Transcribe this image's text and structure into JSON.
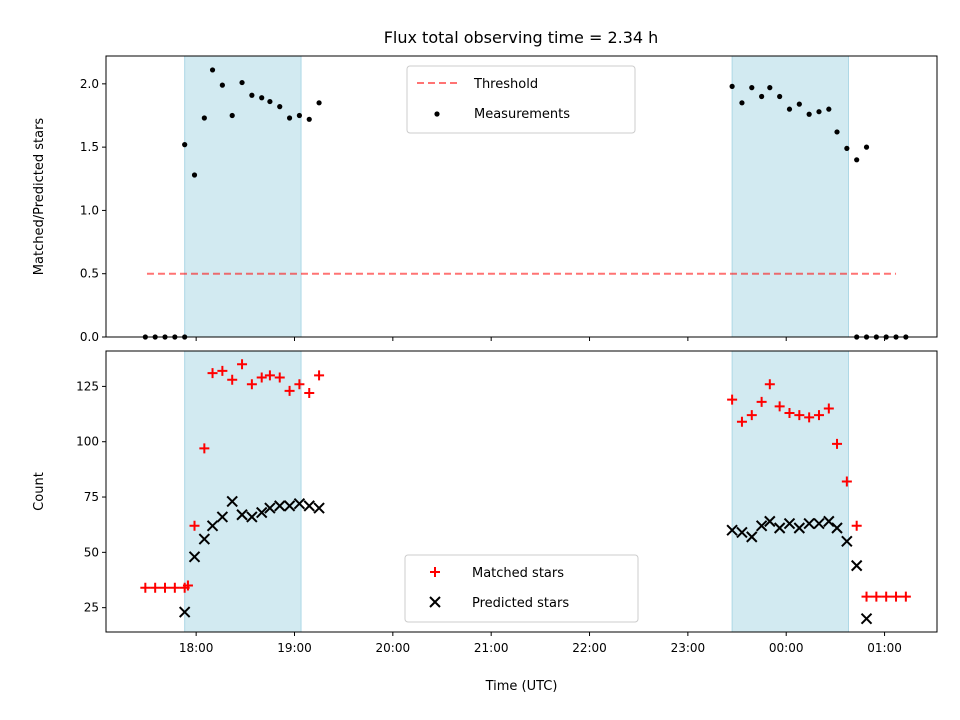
{
  "title": "Flux total observing time = 2.34 h",
  "colors": {
    "shade": "#add8e6",
    "threshold": "#ff0000",
    "measurements": "#000000",
    "matched": "#ff0000",
    "predicted": "#000000"
  },
  "chart_data": [
    {
      "type": "scatter",
      "ylabel": "Matched/Predicted stars",
      "xlim": [
        "17:05",
        "01:32"
      ],
      "ylim": [
        0,
        2.22
      ],
      "yticks": [
        0.0,
        0.5,
        1.0,
        1.5,
        2.0
      ],
      "ytick_labels": [
        "0.0",
        "0.5",
        "1.0",
        "1.5",
        "2.0"
      ],
      "shaded_intervals": [
        [
          "17:53",
          "19:04"
        ],
        [
          "23:27",
          "00:38"
        ]
      ],
      "threshold": {
        "name": "Threshold",
        "value": 0.5,
        "x": [
          "17:30",
          "01:07"
        ]
      },
      "legend": {
        "placement": "upper-center",
        "entries": [
          "Threshold",
          "Measurements"
        ]
      },
      "series": [
        {
          "name": "Measurements",
          "marker": "dot",
          "points": [
            [
              "17:29",
              0.0
            ],
            [
              "17:35",
              0.0
            ],
            [
              "17:41",
              0.0
            ],
            [
              "17:47",
              0.0
            ],
            [
              "17:53",
              0.0
            ],
            [
              "17:53",
              1.52
            ],
            [
              "17:59",
              1.28
            ],
            [
              "18:05",
              1.73
            ],
            [
              "18:10",
              2.11
            ],
            [
              "18:16",
              1.99
            ],
            [
              "18:22",
              1.75
            ],
            [
              "18:28",
              2.01
            ],
            [
              "18:34",
              1.91
            ],
            [
              "18:40",
              1.89
            ],
            [
              "18:45",
              1.86
            ],
            [
              "18:51",
              1.82
            ],
            [
              "18:57",
              1.73
            ],
            [
              "19:03",
              1.75
            ],
            [
              "19:09",
              1.72
            ],
            [
              "19:15",
              1.85
            ],
            [
              "23:27",
              1.98
            ],
            [
              "23:33",
              1.85
            ],
            [
              "23:39",
              1.97
            ],
            [
              "23:45",
              1.9
            ],
            [
              "23:50",
              1.97
            ],
            [
              "23:56",
              1.9
            ],
            [
              "00:02",
              1.8
            ],
            [
              "00:08",
              1.84
            ],
            [
              "00:14",
              1.76
            ],
            [
              "00:20",
              1.78
            ],
            [
              "00:26",
              1.8
            ],
            [
              "00:31",
              1.62
            ],
            [
              "00:37",
              1.49
            ],
            [
              "00:43",
              1.4
            ],
            [
              "00:49",
              1.5
            ],
            [
              "00:43",
              0.0
            ],
            [
              "00:49",
              0.0
            ],
            [
              "00:55",
              0.0
            ],
            [
              "01:01",
              0.0
            ],
            [
              "01:07",
              0.0
            ],
            [
              "01:13",
              0.0
            ]
          ]
        }
      ]
    },
    {
      "type": "scatter",
      "xlabel": "Time (UTC)",
      "ylabel": "Count",
      "xlim": [
        "17:05",
        "01:32"
      ],
      "ylim": [
        14,
        141
      ],
      "yticks": [
        25,
        50,
        75,
        100,
        125
      ],
      "ytick_labels": [
        "25",
        "50",
        "75",
        "100",
        "125"
      ],
      "xticks": [
        "18:00",
        "19:00",
        "20:00",
        "21:00",
        "22:00",
        "23:00",
        "00:00",
        "01:00"
      ],
      "xtick_labels": [
        "18:00",
        "19:00",
        "20:00",
        "21:00",
        "22:00",
        "23:00",
        "00:00",
        "01:00"
      ],
      "shaded_intervals": [
        [
          "17:53",
          "19:04"
        ],
        [
          "23:27",
          "00:38"
        ]
      ],
      "legend": {
        "placement": "lower-center",
        "entries": [
          "Matched stars",
          "Predicted stars"
        ]
      },
      "series": [
        {
          "name": "Matched stars",
          "marker": "plus",
          "points": [
            [
              "17:29",
              34
            ],
            [
              "17:35",
              34
            ],
            [
              "17:41",
              34
            ],
            [
              "17:47",
              34
            ],
            [
              "17:53",
              34
            ],
            [
              "17:55",
              35
            ],
            [
              "17:59",
              62
            ],
            [
              "18:05",
              97
            ],
            [
              "18:10",
              131
            ],
            [
              "18:16",
              132
            ],
            [
              "18:22",
              128
            ],
            [
              "18:28",
              135
            ],
            [
              "18:34",
              126
            ],
            [
              "18:40",
              129
            ],
            [
              "18:45",
              130
            ],
            [
              "18:51",
              129
            ],
            [
              "18:57",
              123
            ],
            [
              "19:03",
              126
            ],
            [
              "19:09",
              122
            ],
            [
              "19:15",
              130
            ],
            [
              "23:27",
              119
            ],
            [
              "23:33",
              109
            ],
            [
              "23:39",
              112
            ],
            [
              "23:45",
              118
            ],
            [
              "23:50",
              126
            ],
            [
              "23:56",
              116
            ],
            [
              "00:02",
              113
            ],
            [
              "00:08",
              112
            ],
            [
              "00:14",
              111
            ],
            [
              "00:20",
              112
            ],
            [
              "00:26",
              115
            ],
            [
              "00:31",
              99
            ],
            [
              "00:37",
              82
            ],
            [
              "00:43",
              62
            ],
            [
              "00:49",
              30
            ],
            [
              "00:55",
              30
            ],
            [
              "01:01",
              30
            ],
            [
              "01:07",
              30
            ],
            [
              "01:13",
              30
            ]
          ]
        },
        {
          "name": "Predicted stars",
          "marker": "x",
          "points": [
            [
              "17:53",
              23
            ],
            [
              "17:59",
              48
            ],
            [
              "18:05",
              56
            ],
            [
              "18:10",
              62
            ],
            [
              "18:16",
              66
            ],
            [
              "18:22",
              73
            ],
            [
              "18:28",
              67
            ],
            [
              "18:34",
              66
            ],
            [
              "18:40",
              68
            ],
            [
              "18:45",
              70
            ],
            [
              "18:51",
              71
            ],
            [
              "18:57",
              71
            ],
            [
              "19:03",
              72
            ],
            [
              "19:09",
              71
            ],
            [
              "19:15",
              70
            ],
            [
              "23:27",
              60
            ],
            [
              "23:33",
              59
            ],
            [
              "23:39",
              57
            ],
            [
              "23:45",
              62
            ],
            [
              "23:50",
              64
            ],
            [
              "23:56",
              61
            ],
            [
              "00:02",
              63
            ],
            [
              "00:08",
              61
            ],
            [
              "00:14",
              63
            ],
            [
              "00:20",
              63
            ],
            [
              "00:26",
              64
            ],
            [
              "00:31",
              61
            ],
            [
              "00:37",
              55
            ],
            [
              "00:43",
              44
            ],
            [
              "00:49",
              20
            ]
          ]
        }
      ]
    }
  ]
}
